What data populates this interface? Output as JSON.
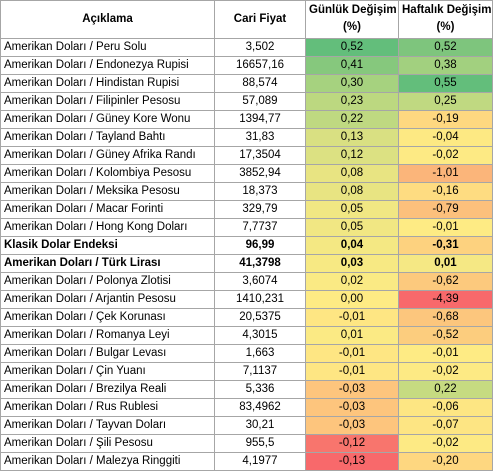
{
  "header": {
    "description": "Açıklama",
    "price": "Cari Fiyat",
    "daily_line1": "Günlük Değişim",
    "daily_line2": "(%)",
    "weekly_line1": "Haftalık Değişim",
    "weekly_line2": "(%)"
  },
  "rows": [
    {
      "name": "Amerikan Doları / Peru Solu",
      "price": "3,502",
      "daily": "0,52",
      "weekly": "0,52",
      "daily_color": "#63be7b",
      "weekly_color": "#7ec57d",
      "bold": false
    },
    {
      "name": "Amerikan Doları / Endonezya Rupisi",
      "price": "16657,16",
      "daily": "0,41",
      "weekly": "0,38",
      "daily_color": "#86c87d",
      "weekly_color": "#a2d07f",
      "bold": false
    },
    {
      "name": "Amerikan Doları / Hindistan Rupisi",
      "price": "88,574",
      "daily": "0,30",
      "weekly": "0,55",
      "daily_color": "#a6d27f",
      "weekly_color": "#63be7b",
      "bold": false
    },
    {
      "name": "Amerikan Doları / Filipinler Pesosu",
      "price": "57,089",
      "daily": "0,23",
      "weekly": "0,25",
      "daily_color": "#bcd880",
      "weekly_color": "#c0d981",
      "bold": false
    },
    {
      "name": "Amerikan Doları / Güney Kore Wonu",
      "price": "1394,77",
      "daily": "0,22",
      "weekly": "-0,19",
      "daily_color": "#bfd981",
      "weekly_color": "#fed880",
      "bold": false
    },
    {
      "name": "Amerikan Doları / Tayland Bahtı",
      "price": "31,83",
      "daily": "0,13",
      "weekly": "-0,04",
      "daily_color": "#d9e082",
      "weekly_color": "#fde983",
      "bold": false
    },
    {
      "name": "Amerikan Doları / Güney Afrika Randı",
      "price": "17,3504",
      "daily": "0,12",
      "weekly": "-0,02",
      "daily_color": "#dce182",
      "weekly_color": "#fdea84",
      "bold": false
    },
    {
      "name": "Amerikan Doları / Kolombiya Pesosu",
      "price": "3852,94",
      "daily": "0,08",
      "weekly": "-1,01",
      "daily_color": "#e8e482",
      "weekly_color": "#fbb57a",
      "bold": false
    },
    {
      "name": "Amerikan Doları / Meksika Pesosu",
      "price": "18,373",
      "daily": "0,08",
      "weekly": "-0,16",
      "daily_color": "#e8e482",
      "weekly_color": "#fedc81",
      "bold": false
    },
    {
      "name": "Amerikan Doları / Macar Forinti",
      "price": "329,79",
      "daily": "0,05",
      "weekly": "-0,79",
      "daily_color": "#f1e783",
      "weekly_color": "#fcc07c",
      "bold": false
    },
    {
      "name": "Amerikan Doları / Hong Kong Doları",
      "price": "7,7737",
      "daily": "0,05",
      "weekly": "-0,01",
      "daily_color": "#f1e783",
      "weekly_color": "#feeb84",
      "bold": false
    },
    {
      "name": "Klasik Dolar Endeksi",
      "price": "96,99",
      "daily": "0,04",
      "weekly": "-0,31",
      "daily_color": "#f4e883",
      "weekly_color": "#fdd27f",
      "bold": true
    },
    {
      "name": "Amerikan Doları / Türk Lirası",
      "price": "41,3798",
      "daily": "0,03",
      "weekly": "0,01",
      "daily_color": "#f7e983",
      "weekly_color": "#f5e884",
      "bold": true
    },
    {
      "name": "Amerikan Doları / Polonya Zlotisi",
      "price": "3,6074",
      "daily": "0,02",
      "weekly": "-0,62",
      "daily_color": "#faea84",
      "weekly_color": "#fcc97d",
      "bold": false
    },
    {
      "name": "Amerikan Doları / Arjantin Pesosu",
      "price": "1410,231",
      "daily": "0,00",
      "weekly": "-4,39",
      "daily_color": "#feeb84",
      "weekly_color": "#f8696b",
      "bold": false
    },
    {
      "name": "Amerikan Doları / Çek Korunası",
      "price": "20,5375",
      "daily": "-0,01",
      "weekly": "-0,68",
      "daily_color": "#fee683",
      "weekly_color": "#fcc67d",
      "bold": false
    },
    {
      "name": "Amerikan Doları / Romanya Leyi",
      "price": "4,3015",
      "daily": "0,01",
      "weekly": "-0,52",
      "daily_color": "#fbea84",
      "weekly_color": "#fccd7e",
      "bold": false
    },
    {
      "name": "Amerikan Doları / Bulgar Levası",
      "price": "1,663",
      "daily": "-0,01",
      "weekly": "-0,01",
      "daily_color": "#fee683",
      "weekly_color": "#feeb84",
      "bold": false
    },
    {
      "name": "Amerikan Doları / Çin Yuanı",
      "price": "7,1137",
      "daily": "-0,01",
      "weekly": "-0,02",
      "daily_color": "#fee683",
      "weekly_color": "#fdea84",
      "bold": false
    },
    {
      "name": "Amerikan Doları / Brezilya Reali",
      "price": "5,336",
      "daily": "-0,03",
      "weekly": "0,22",
      "daily_color": "#fdc57d",
      "weekly_color": "#c6db81",
      "bold": false
    },
    {
      "name": "Amerikan Doları / Rus Rublesi",
      "price": "83,4962",
      "daily": "-0,03",
      "weekly": "-0,06",
      "daily_color": "#fdc57d",
      "weekly_color": "#fde683",
      "bold": false
    },
    {
      "name": "Amerikan Doları /  Tayvan Doları",
      "price": "30,21",
      "daily": "-0,03",
      "weekly": "-0,07",
      "daily_color": "#fdc57d",
      "weekly_color": "#fde583",
      "bold": false
    },
    {
      "name": "Amerikan Doları / Şili Pesosu",
      "price": "955,5",
      "daily": "-0,12",
      "weekly": "-0,02",
      "daily_color": "#f8756d",
      "weekly_color": "#fdea84",
      "bold": false
    },
    {
      "name": "Amerikan Doları / Malezya Ringgiti",
      "price": "4,1977",
      "daily": "-0,13",
      "weekly": "-0,20",
      "daily_color": "#f8696b",
      "weekly_color": "#fed780",
      "bold": false
    }
  ]
}
